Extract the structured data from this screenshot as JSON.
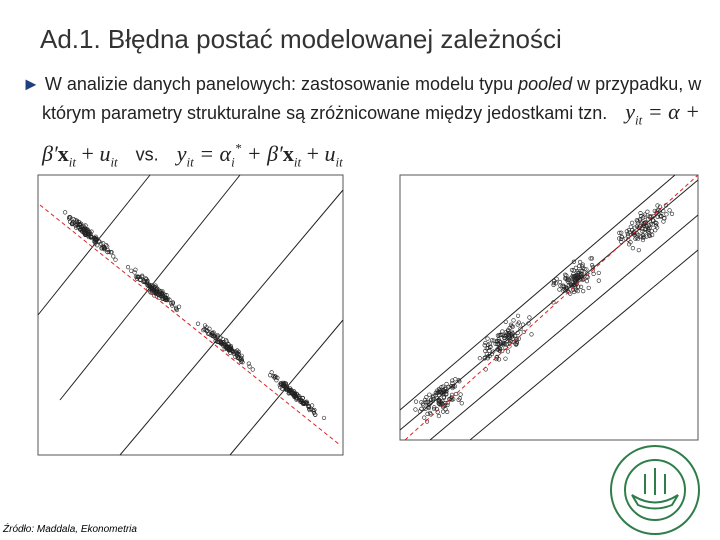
{
  "header": {
    "title": "Ad.1. Błędna postać modelowanej zależności"
  },
  "bullet": {
    "marker": "►",
    "before": "W analizie danych panelowych: zastosowanie modelu typu ",
    "emphasis": "pooled",
    "after": " w przypadku, w którym parametry strukturalne są zróżnicowane między jedostkami tzn.",
    "separator": "vs."
  },
  "formulas": [
    [
      {
        "t": "y",
        "s": "i"
      },
      {
        "t": "it",
        "s": "sub"
      },
      {
        "t": " = α + β′",
        "s": "i"
      },
      {
        "t": "x",
        "s": "b"
      },
      {
        "t": "it",
        "s": "sub"
      },
      {
        "t": " + ",
        "s": "n"
      },
      {
        "t": "u",
        "s": "i"
      },
      {
        "t": "it",
        "s": "sub"
      }
    ],
    [
      {
        "t": "y",
        "s": "i"
      },
      {
        "t": "it",
        "s": "sub"
      },
      {
        "t": " = α",
        "s": "i"
      },
      {
        "t": "i",
        "s": "sub"
      },
      {
        "t": "*",
        "s": "sup"
      },
      {
        "t": " + β′",
        "s": "i"
      },
      {
        "t": "x",
        "s": "b"
      },
      {
        "t": "it",
        "s": "sub"
      },
      {
        "t": " + ",
        "s": "n"
      },
      {
        "t": "u",
        "s": "i"
      },
      {
        "t": "it",
        "s": "sub"
      }
    ]
  ],
  "source": "Źródło: Maddala, Ekonometria"
}
